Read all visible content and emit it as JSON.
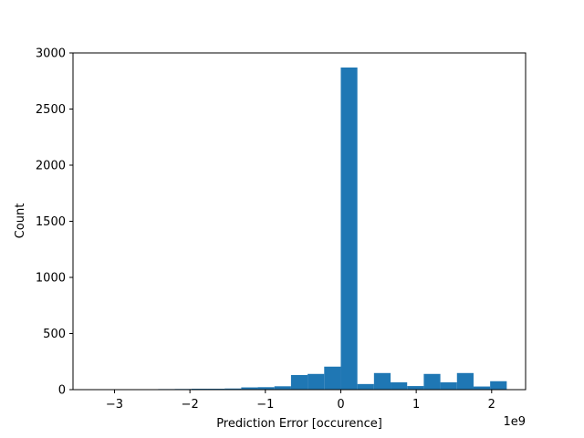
{
  "chart_data": {
    "type": "bar",
    "title": "",
    "xlabel": "Prediction Error [occurence]",
    "ylabel": "Count",
    "x_offset_label": "1e9",
    "x_unit_scale": 1000000000,
    "xlim": [
      -3.55,
      2.45
    ],
    "ylim": [
      0,
      3000
    ],
    "x_ticks": [
      -3,
      -2,
      -1,
      0,
      1,
      2
    ],
    "x_tick_labels": [
      "−3",
      "−2",
      "−1",
      "0",
      "1",
      "2"
    ],
    "y_ticks": [
      0,
      500,
      1000,
      1500,
      2000,
      2500,
      3000
    ],
    "y_tick_labels": [
      "0",
      "500",
      "1000",
      "1500",
      "2000",
      "2500",
      "3000"
    ],
    "bin_width": 0.22,
    "bar_color": "#1f77b4",
    "bins": [
      {
        "left": -3.3,
        "count": 2
      },
      {
        "left": -3.08,
        "count": 1
      },
      {
        "left": -2.86,
        "count": 2
      },
      {
        "left": -2.64,
        "count": 3
      },
      {
        "left": -2.42,
        "count": 5
      },
      {
        "left": -2.2,
        "count": 6
      },
      {
        "left": -1.98,
        "count": 8
      },
      {
        "left": -1.76,
        "count": 8
      },
      {
        "left": -1.54,
        "count": 10
      },
      {
        "left": -1.32,
        "count": 20
      },
      {
        "left": -1.1,
        "count": 22
      },
      {
        "left": -0.88,
        "count": 30
      },
      {
        "left": -0.66,
        "count": 130
      },
      {
        "left": -0.44,
        "count": 140
      },
      {
        "left": -0.22,
        "count": 205
      },
      {
        "left": 0.0,
        "count": 2870
      },
      {
        "left": 0.22,
        "count": 50
      },
      {
        "left": 0.44,
        "count": 148
      },
      {
        "left": 0.66,
        "count": 65
      },
      {
        "left": 0.88,
        "count": 32
      },
      {
        "left": 1.1,
        "count": 140
      },
      {
        "left": 1.32,
        "count": 65
      },
      {
        "left": 1.54,
        "count": 148
      },
      {
        "left": 1.76,
        "count": 28
      },
      {
        "left": 1.98,
        "count": 75
      }
    ]
  }
}
